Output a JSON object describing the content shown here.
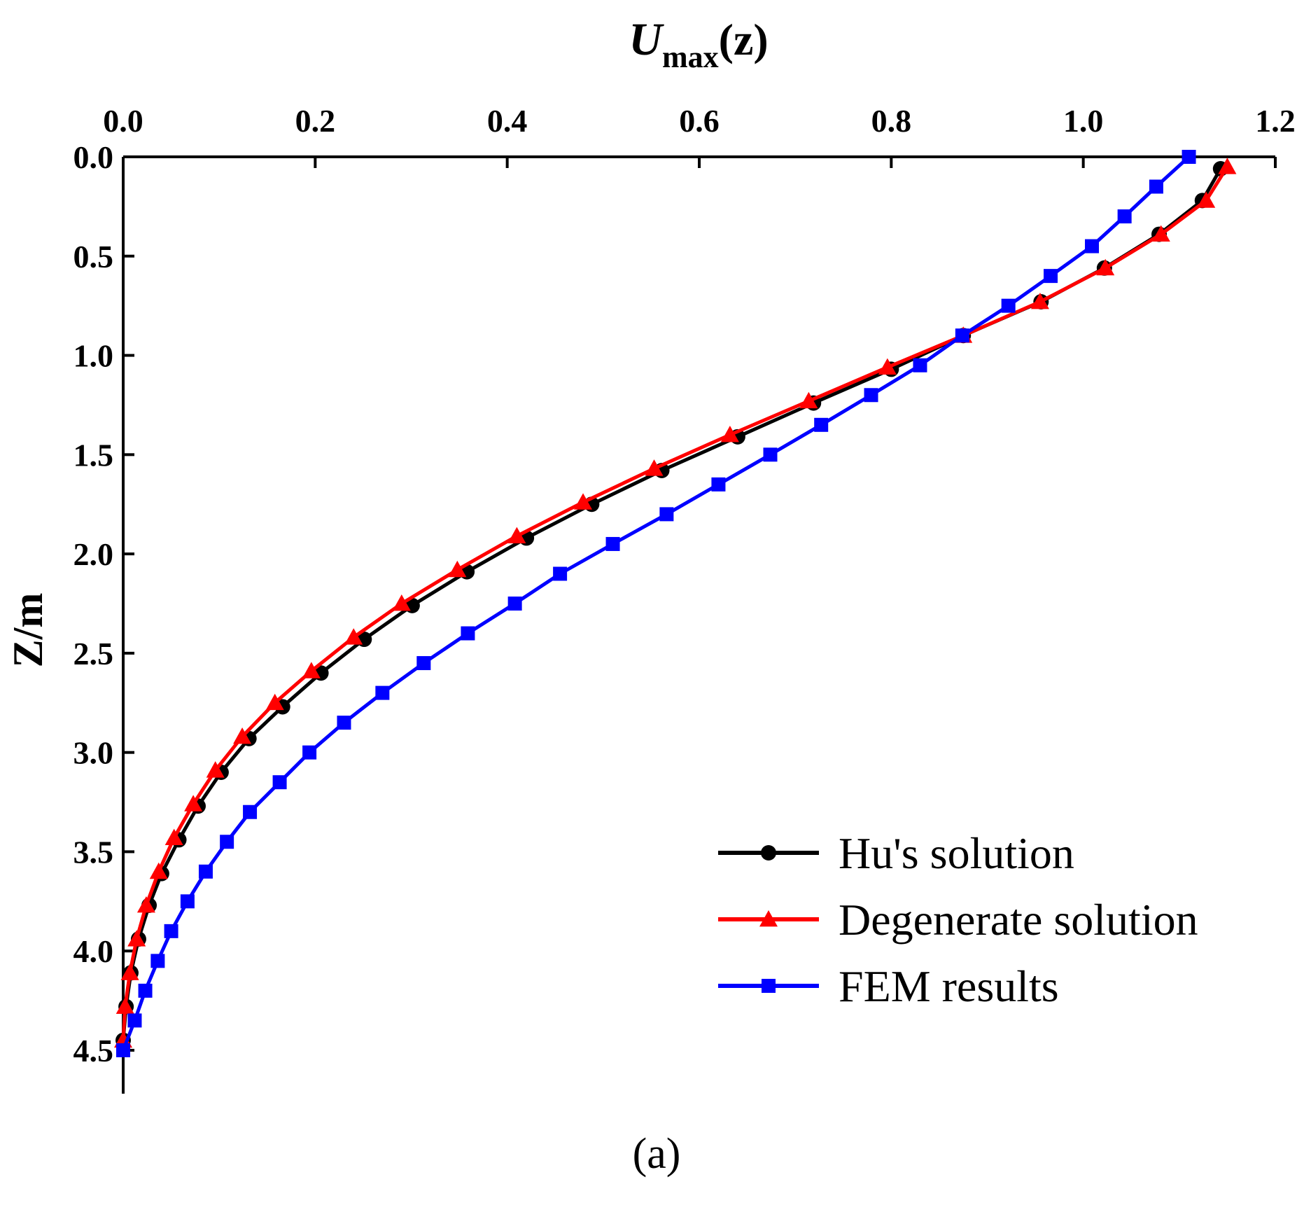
{
  "chart_data": {
    "type": "line",
    "title": "",
    "xlabel_main": "U",
    "xlabel_sub": "max",
    "xlabel_tail": "(z)",
    "ylabel": "Z/m",
    "panel_label": "(a)",
    "xlim": [
      0.0,
      1.2
    ],
    "ylim": [
      0.0,
      4.5
    ],
    "x_axis_position": "top",
    "y_axis_inverted": true,
    "grid": false,
    "legend_position": "bottom-right",
    "x_ticks": [
      "0.0",
      "0.2",
      "0.4",
      "0.6",
      "0.8",
      "1.0",
      "1.2"
    ],
    "y_ticks": [
      "0.0",
      "0.5",
      "1.0",
      "1.5",
      "2.0",
      "2.5",
      "3.0",
      "3.5",
      "4.0",
      "4.5"
    ],
    "series": [
      {
        "name": "Hu's solution",
        "color": "#000000",
        "marker": "circle",
        "points": [
          [
            1.143,
            0.06
          ],
          [
            1.124,
            0.22
          ],
          [
            1.079,
            0.39
          ],
          [
            1.022,
            0.56
          ],
          [
            0.956,
            0.73
          ],
          [
            0.875,
            0.9
          ],
          [
            0.8,
            1.07
          ],
          [
            0.719,
            1.24
          ],
          [
            0.64,
            1.41
          ],
          [
            0.561,
            1.58
          ],
          [
            0.488,
            1.75
          ],
          [
            0.42,
            1.92
          ],
          [
            0.358,
            2.09
          ],
          [
            0.301,
            2.26
          ],
          [
            0.251,
            2.43
          ],
          [
            0.206,
            2.6
          ],
          [
            0.166,
            2.77
          ],
          [
            0.131,
            2.93
          ],
          [
            0.102,
            3.1
          ],
          [
            0.078,
            3.27
          ],
          [
            0.058,
            3.44
          ],
          [
            0.04,
            3.61
          ],
          [
            0.027,
            3.77
          ],
          [
            0.016,
            3.94
          ],
          [
            0.008,
            4.11
          ],
          [
            0.003,
            4.28
          ],
          [
            0.0,
            4.45
          ]
        ]
      },
      {
        "name": "Degenerate solution",
        "color": "#ff0000",
        "marker": "triangle",
        "points": [
          [
            1.15,
            0.05
          ],
          [
            1.128,
            0.22
          ],
          [
            1.081,
            0.39
          ],
          [
            1.023,
            0.56
          ],
          [
            0.955,
            0.73
          ],
          [
            0.875,
            0.9
          ],
          [
            0.796,
            1.06
          ],
          [
            0.714,
            1.23
          ],
          [
            0.632,
            1.4
          ],
          [
            0.553,
            1.57
          ],
          [
            0.479,
            1.74
          ],
          [
            0.41,
            1.91
          ],
          [
            0.348,
            2.08
          ],
          [
            0.29,
            2.25
          ],
          [
            0.24,
            2.42
          ],
          [
            0.196,
            2.59
          ],
          [
            0.158,
            2.75
          ],
          [
            0.124,
            2.92
          ],
          [
            0.096,
            3.09
          ],
          [
            0.073,
            3.26
          ],
          [
            0.053,
            3.43
          ],
          [
            0.037,
            3.6
          ],
          [
            0.024,
            3.77
          ],
          [
            0.014,
            3.94
          ],
          [
            0.007,
            4.11
          ],
          [
            0.002,
            4.28
          ],
          [
            0.0,
            4.45
          ]
        ]
      },
      {
        "name": "FEM results",
        "color": "#0000ff",
        "marker": "square",
        "points": [
          [
            1.11,
            0.0
          ],
          [
            1.076,
            0.15
          ],
          [
            1.043,
            0.3
          ],
          [
            1.009,
            0.45
          ],
          [
            0.966,
            0.6
          ],
          [
            0.922,
            0.75
          ],
          [
            0.874,
            0.9
          ],
          [
            0.83,
            1.05
          ],
          [
            0.779,
            1.2
          ],
          [
            0.727,
            1.35
          ],
          [
            0.674,
            1.5
          ],
          [
            0.62,
            1.65
          ],
          [
            0.566,
            1.8
          ],
          [
            0.51,
            1.95
          ],
          [
            0.455,
            2.1
          ],
          [
            0.408,
            2.25
          ],
          [
            0.359,
            2.4
          ],
          [
            0.313,
            2.55
          ],
          [
            0.27,
            2.7
          ],
          [
            0.23,
            2.85
          ],
          [
            0.194,
            3.0
          ],
          [
            0.163,
            3.15
          ],
          [
            0.132,
            3.3
          ],
          [
            0.108,
            3.45
          ],
          [
            0.086,
            3.6
          ],
          [
            0.067,
            3.75
          ],
          [
            0.05,
            3.9
          ],
          [
            0.036,
            4.05
          ],
          [
            0.023,
            4.2
          ],
          [
            0.012,
            4.35
          ],
          [
            0.0,
            4.5
          ]
        ]
      }
    ]
  }
}
